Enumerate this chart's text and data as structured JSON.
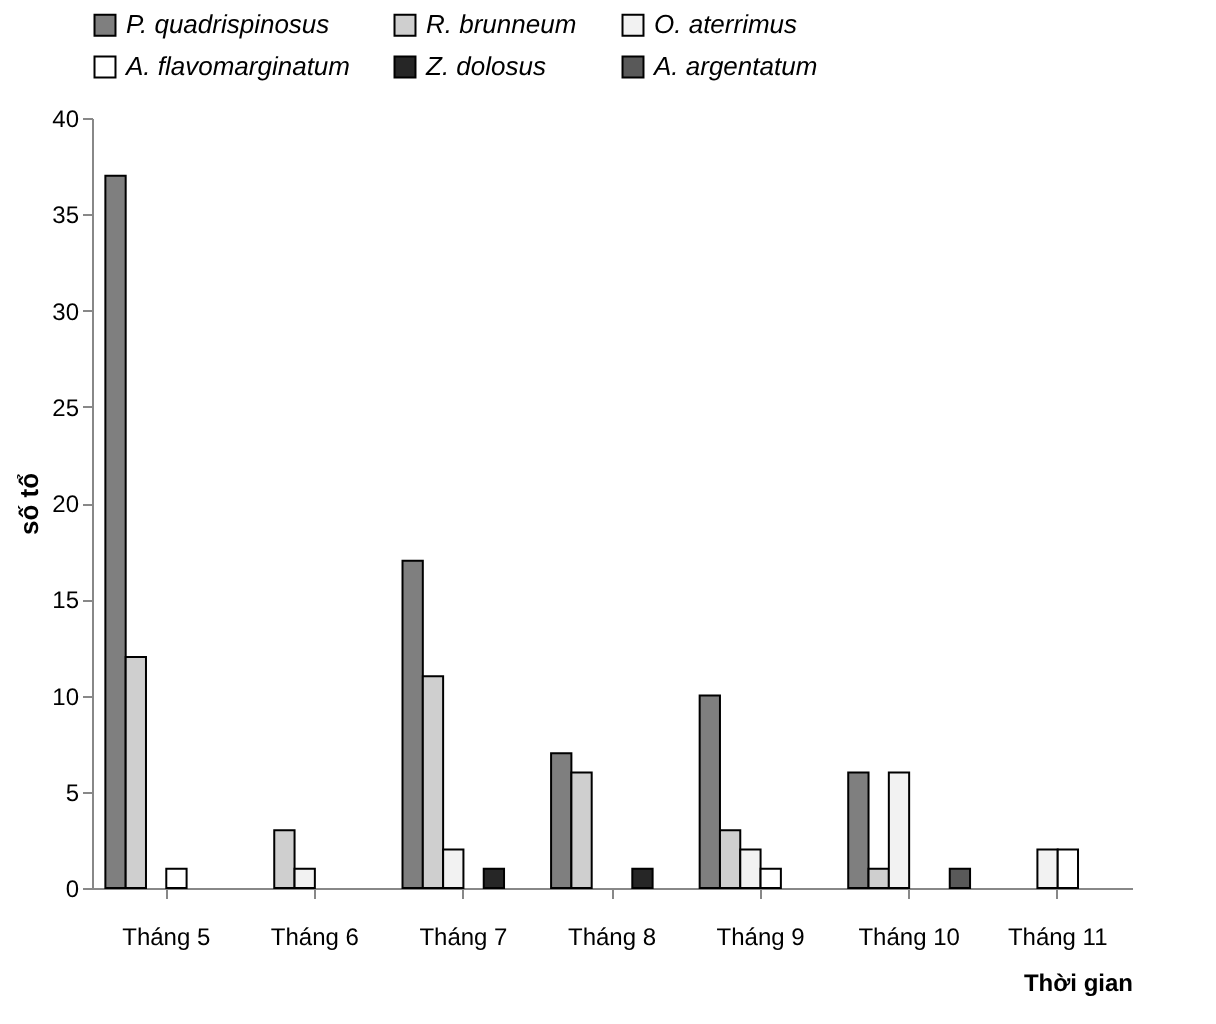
{
  "chart_data": {
    "type": "bar",
    "xlabel": "Thời gian",
    "ylabel": "số tổ",
    "categories": [
      "Tháng 5",
      "Tháng 6",
      "Tháng 7",
      "Tháng 8",
      "Tháng 9",
      "Tháng 10",
      "Tháng 11"
    ],
    "series": [
      {
        "name": "P. quadrispinosus",
        "color": "#7f7f7f",
        "values": [
          37,
          0,
          17,
          7,
          10,
          6,
          0
        ]
      },
      {
        "name": "R. brunneum",
        "color": "#cfcfcf",
        "values": [
          12,
          3,
          11,
          6,
          3,
          1,
          0
        ]
      },
      {
        "name": "O. aterrimus",
        "color": "#f2f2f2",
        "values": [
          0,
          1,
          2,
          0,
          2,
          6,
          2
        ]
      },
      {
        "name": "A. flavomarginatum",
        "color": "#ffffff",
        "values": [
          1,
          0,
          0,
          0,
          1,
          0,
          2
        ]
      },
      {
        "name": "Z. dolosus",
        "color": "#262626",
        "values": [
          0,
          0,
          1,
          1,
          0,
          0,
          0
        ]
      },
      {
        "name": "A. argentatum",
        "color": "#595959",
        "values": [
          0,
          0,
          0,
          0,
          0,
          1,
          0
        ]
      }
    ],
    "ylim": [
      0,
      40
    ],
    "yticks": [
      0,
      5,
      10,
      15,
      20,
      25,
      30,
      35,
      40
    ],
    "grid": false,
    "legend": "top"
  }
}
